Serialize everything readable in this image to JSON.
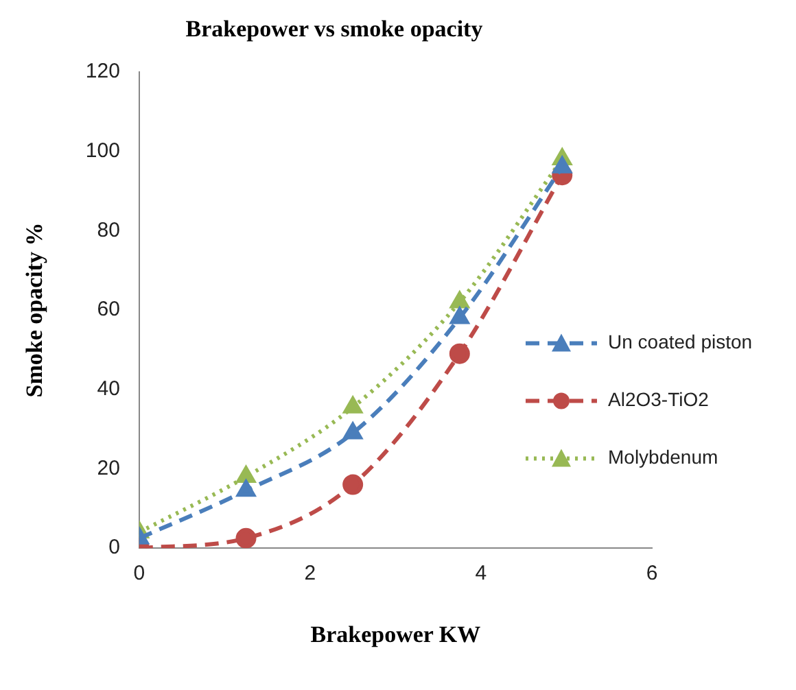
{
  "chart_data": {
    "type": "line",
    "title": "Brakepower vs smoke opacity",
    "xlabel": "Brakepower KW",
    "ylabel": "Smoke opacity %",
    "xlim": [
      0,
      6
    ],
    "xticks": [
      0,
      2,
      4,
      6
    ],
    "ylim": [
      0,
      120
    ],
    "yticks": [
      0,
      20,
      40,
      60,
      80,
      100,
      120
    ],
    "grid": false,
    "legend": "right",
    "series": [
      {
        "name": "Un coated piston",
        "color": "#4a7ebb",
        "x": [
          0,
          1.25,
          2.5,
          3.75,
          4.95
        ],
        "values": [
          2.5,
          14.5,
          29,
          58,
          96
        ],
        "marker": "triangle",
        "line_style": "dashed"
      },
      {
        "name": "Al2O3-TiO2",
        "color": "#be4b48",
        "x": [
          0,
          1.25,
          2.5,
          3.75,
          4.95
        ],
        "values": [
          0,
          2.5,
          16,
          49,
          94
        ],
        "marker": "circle",
        "line_style": "dashed"
      },
      {
        "name": "Molybdenum",
        "color": "#98b954",
        "x": [
          0,
          1.25,
          2.5,
          3.75,
          4.95
        ],
        "values": [
          4,
          18,
          35.5,
          62,
          98
        ],
        "marker": "triangle",
        "line_style": "dotted"
      }
    ]
  }
}
